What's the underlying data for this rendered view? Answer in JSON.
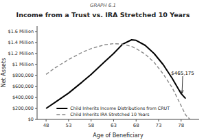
{
  "chart_data": {
    "type": "line",
    "title": "Income from a Trust vs. IRA Stretched 10 Years",
    "subtitle": "GRAPH 6.1",
    "x_label": "Age of Beneficiary",
    "y_label": "Net Assets",
    "xlim": [
      46,
      82
    ],
    "ylim": [
      0,
      1700000
    ],
    "xticks": [
      48,
      53,
      58,
      63,
      68,
      73,
      78
    ],
    "yticks": [
      {
        "value": 0,
        "label": "$0"
      },
      {
        "value": 200000,
        "label": "$200,000"
      },
      {
        "value": 400000,
        "label": "$400,000"
      },
      {
        "value": 600000,
        "label": "$600,000"
      },
      {
        "value": 800000,
        "label": "$800,000"
      },
      {
        "value": 1000000,
        "label": "$1 Million"
      },
      {
        "value": 1200000,
        "label": "$1.2 Million"
      },
      {
        "value": 1400000,
        "label": "$1.4 Million"
      },
      {
        "value": 1600000,
        "label": "$1.6 Million"
      }
    ],
    "grid": false,
    "legend": "lower left",
    "series": [
      {
        "name": "Child Inherits Income Distributions from CRUT",
        "color": "#000000",
        "line_style": "solid",
        "x": [
          48,
          50,
          53,
          56,
          58,
          61,
          63,
          65,
          67,
          68,
          70,
          72,
          74,
          76,
          78,
          79
        ],
        "values": [
          200000,
          310000,
          480000,
          680000,
          820000,
          1050000,
          1200000,
          1370000,
          1450000,
          1440000,
          1350000,
          1200000,
          1000000,
          750000,
          470000,
          380000
        ]
      },
      {
        "name": "Child Inherits IRA Stretched 10 Years",
        "color": "#888888",
        "line_style": "dashed",
        "x": [
          48,
          50,
          53,
          56,
          58,
          61,
          63,
          65,
          67,
          68,
          70,
          72,
          74,
          76,
          78,
          79,
          80
        ],
        "values": [
          820000,
          940000,
          1090000,
          1220000,
          1290000,
          1360000,
          1380000,
          1370000,
          1330000,
          1290000,
          1190000,
          1040000,
          830000,
          580000,
          250000,
          80000,
          0
        ]
      }
    ],
    "annotations": [
      {
        "text": "$465,175",
        "x": 78.2,
        "y": 480000,
        "text_x": 75.8,
        "text_y": 850000
      }
    ]
  }
}
